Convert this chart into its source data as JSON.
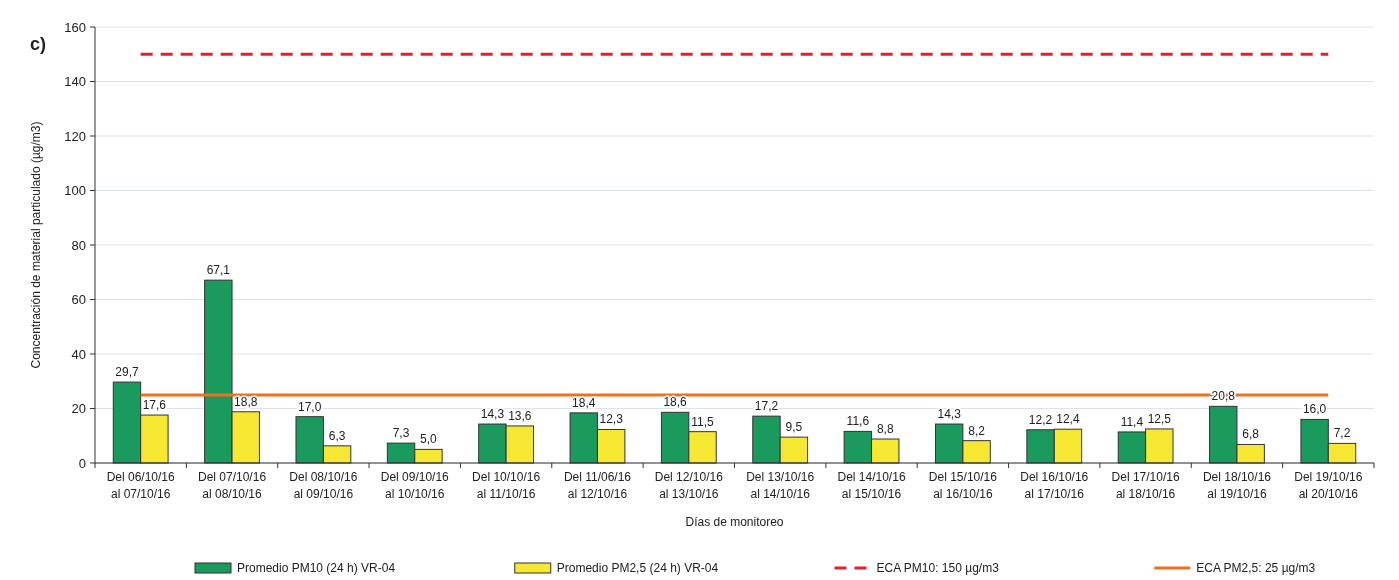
{
  "chart_data": {
    "type": "bar",
    "title": "c)",
    "xlabel": "Días de monitoreo",
    "ylabel": "Concentración de material particulado (µg/m3)",
    "categories": [
      "Del 06/10/16\nal 07/10/16",
      "Del 07/10/16\nal 08/10/16",
      "Del 08/10/16\nal 09/10/16",
      "Del 09/10/16\nal 10/10/16",
      "Del 10/10/16\nal 11/10/16",
      "Del 11/06/16\nal 12/10/16",
      "Del 12/10/16\nal 13/10/16",
      "Del 13/10/16\nal 14/10/16",
      "Del 14/10/16\nal 15/10/16",
      "Del 15/10/16\nal 16/10/16",
      "Del 16/10/16\nal 17/10/16",
      "Del 17/10/16\nal 18/10/16",
      "Del 18/10/16\nal 19/10/16",
      "Del 19/10/16\nal 20/10/16"
    ],
    "series": [
      {
        "name": "Promedio PM10 (24 h) VR-04",
        "color": "#1a9a5c",
        "values": [
          29.7,
          67.1,
          17.0,
          7.3,
          14.3,
          18.4,
          18.6,
          17.2,
          11.6,
          14.3,
          12.2,
          11.4,
          20.8,
          16.0
        ],
        "value_labels": [
          "29,7",
          "67,1",
          "17,0",
          "7,3",
          "14,3",
          "18,4",
          "18,6",
          "17,2",
          "11,6",
          "14,3",
          "12,2",
          "11,4",
          "20,8",
          "16,0"
        ]
      },
      {
        "name": "Promedio PM2,5 (24 h) VR-04",
        "color": "#f6e832",
        "values": [
          17.6,
          18.8,
          6.3,
          5.0,
          13.6,
          12.3,
          11.5,
          9.5,
          8.8,
          8.2,
          12.4,
          12.5,
          6.8,
          7.2
        ],
        "value_labels": [
          "17,6",
          "18,8",
          "6,3",
          "5,0",
          "13,6",
          "12,3",
          "11,5",
          "9,5",
          "8,8",
          "8,2",
          "12,4",
          "12,5",
          "6,8",
          "7,2"
        ]
      },
      {
        "name": "ECA PM10: 150 µg/m3",
        "type": "line",
        "color": "#e8202a",
        "line_style": "dashed",
        "values": [
          150,
          150,
          150,
          150,
          150,
          150,
          150,
          150,
          150,
          150,
          150,
          150,
          150,
          150
        ]
      },
      {
        "name": "ECA PM2,5: 25 µg/m3",
        "type": "line",
        "color": "#f07020",
        "line_style": "solid",
        "values": [
          25,
          25,
          25,
          25,
          25,
          25,
          25,
          25,
          25,
          25,
          25,
          25,
          25,
          25
        ]
      }
    ],
    "ylim": [
      0,
      160
    ],
    "yticks": [
      0,
      20,
      40,
      60,
      80,
      100,
      120,
      140,
      160
    ],
    "grid": "y",
    "legend": "bottom",
    "marker": "none"
  }
}
